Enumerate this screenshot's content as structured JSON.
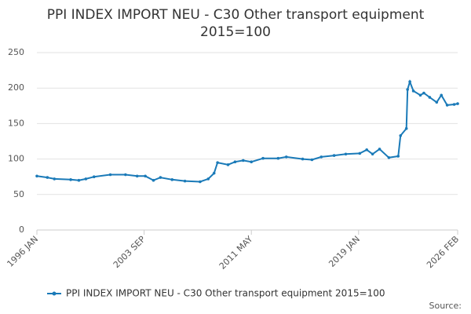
{
  "chart_data": {
    "type": "line",
    "title": "PPI INDEX IMPORT NEU - C30 Other transport equipment",
    "subtitle": "2015=100",
    "x": [
      "1996 JAN",
      "1996 OCT",
      "1997 APR",
      "1998 JUN",
      "1999 JAN",
      "1999 JUL",
      "2000 FEB",
      "2001 APR",
      "2002 MAY",
      "2003 MAR",
      "2003 OCT",
      "2004 MAY",
      "2004 NOV",
      "2005 SEP",
      "2006 AUG",
      "2007 SEP",
      "2008 APR",
      "2008 SEP",
      "2008 DEC",
      "2009 SEP",
      "2010 MAR",
      "2010 OCT",
      "2011 MAY",
      "2012 MAR",
      "2013 APR",
      "2013 NOV",
      "2015 JAN",
      "2015 SEP",
      "2016 MAY",
      "2017 APR",
      "2018 FEB",
      "2019 FEB",
      "2019 AUG",
      "2020 JAN",
      "2020 JUL",
      "2021 MAR",
      "2021 NOV",
      "2022 JAN",
      "2022 JUN",
      "2022 JUL",
      "2022 SEP",
      "2022 DEC",
      "2023 JUN",
      "2023 SEP",
      "2024 FEB",
      "2024 AUG",
      "2024 DEC",
      "2025 MAY",
      "2025 NOV",
      "2026 FEB"
    ],
    "series": [
      {
        "name": "PPI INDEX IMPORT NEU - C30 Other transport equipment 2015=100",
        "color": "#1a7ab8",
        "values": [
          76,
          74,
          72,
          71,
          70,
          72,
          75,
          78,
          78,
          76,
          76,
          70,
          74,
          71,
          69,
          68,
          72,
          80,
          95,
          92,
          96,
          98,
          96,
          101,
          101,
          103,
          100,
          99,
          103,
          105,
          107,
          108,
          113,
          107,
          114,
          102,
          104,
          133,
          143,
          198,
          209,
          196,
          190,
          193,
          187,
          180,
          190,
          176,
          177,
          178
        ]
      }
    ],
    "xlim": [
      "1996 JAN",
      "2026 FEB"
    ],
    "xticks": [
      "1996 JAN",
      "2003 SEP",
      "2011 MAY",
      "2019 JAN",
      "2026 FEB"
    ],
    "ylim": [
      0,
      250
    ],
    "yticks": [
      0,
      50,
      100,
      150,
      200,
      250
    ],
    "grid": true,
    "legend": "bottom",
    "source": "Source:"
  }
}
